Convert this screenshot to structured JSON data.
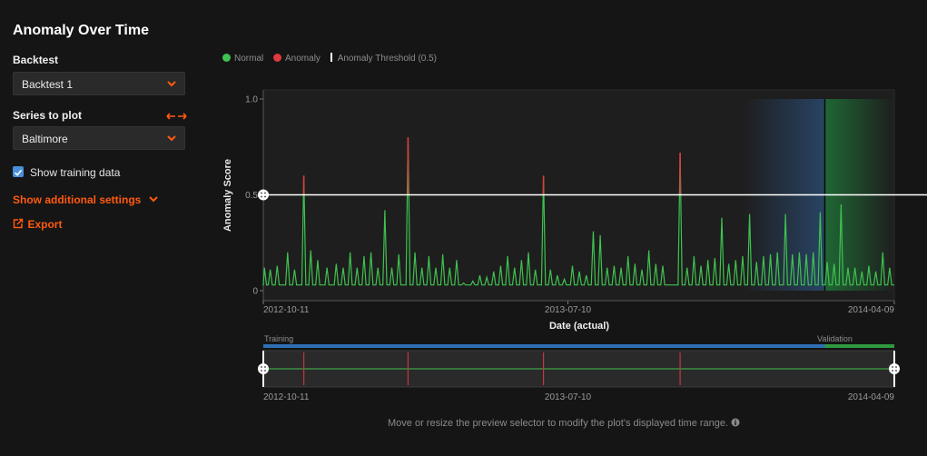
{
  "page": {
    "title": "Anomaly Over Time",
    "backtest_label": "Backtest",
    "backtest_value": "Backtest 1",
    "series_label": "Series to plot",
    "series_value": "Baltimore",
    "show_training_label": "Show training data",
    "show_training_checked": true,
    "additional_settings_label": "Show additional settings",
    "export_label": "Export",
    "footnote": "Move or resize the preview selector to modify the plot's displayed time range.",
    "colors": {
      "accent": "#ff5a0f",
      "normal": "#3fc24f",
      "anomaly": "#e0393e",
      "training": "#2f6fb5",
      "validation": "#2f9a3f"
    }
  },
  "legend": [
    {
      "label": "Normal",
      "color": "#3fc24f",
      "marker": "dot"
    },
    {
      "label": "Anomaly",
      "color": "#e0393e",
      "marker": "dot"
    },
    {
      "label": "Anomaly Threshold (0.5)",
      "color": "#ffffff",
      "marker": "line"
    }
  ],
  "chart_data": {
    "type": "line",
    "ylabel": "Anomaly Score",
    "xlabel": "Date (actual)",
    "yticks": [
      "0",
      "0.5",
      "1.0"
    ],
    "ylim": [
      0,
      1.05
    ],
    "xtick_labels": [
      "2012-10-11",
      "2013-07-10",
      "2014-04-09"
    ],
    "x_range": [
      "2012-10-11",
      "2014-04-09"
    ],
    "threshold": 0.5,
    "partitions": [
      {
        "name": "Training",
        "start": "2012-10-11",
        "end": "2014-02-08"
      },
      {
        "name": "Validation",
        "start": "2014-02-08",
        "end": "2014-04-09"
      }
    ],
    "series": [
      {
        "name": "Anomaly Score",
        "baseline": 0.03,
        "peaks": [
          [
            "2012-10-12",
            0.12
          ],
          [
            "2012-10-17",
            0.11
          ],
          [
            "2012-10-23",
            0.13
          ],
          [
            "2012-11-01",
            0.2
          ],
          [
            "2012-11-07",
            0.11
          ],
          [
            "2012-11-15",
            0.6
          ],
          [
            "2012-11-21",
            0.21
          ],
          [
            "2012-11-27",
            0.16
          ],
          [
            "2012-12-05",
            0.12
          ],
          [
            "2012-12-13",
            0.14
          ],
          [
            "2012-12-19",
            0.12
          ],
          [
            "2012-12-25",
            0.2
          ],
          [
            "2012-12-31",
            0.12
          ],
          [
            "2013-01-06",
            0.18
          ],
          [
            "2013-01-12",
            0.2
          ],
          [
            "2013-01-18",
            0.12
          ],
          [
            "2013-01-24",
            0.42
          ],
          [
            "2013-01-30",
            0.12
          ],
          [
            "2013-02-05",
            0.19
          ],
          [
            "2013-02-13",
            0.8
          ],
          [
            "2013-02-19",
            0.2
          ],
          [
            "2013-02-25",
            0.12
          ],
          [
            "2013-03-03",
            0.18
          ],
          [
            "2013-03-09",
            0.12
          ],
          [
            "2013-03-15",
            0.19
          ],
          [
            "2013-03-21",
            0.12
          ],
          [
            "2013-03-27",
            0.16
          ],
          [
            "2013-04-02",
            0.04
          ],
          [
            "2013-04-10",
            0.05
          ],
          [
            "2013-04-16",
            0.08
          ],
          [
            "2013-04-22",
            0.07
          ],
          [
            "2013-04-28",
            0.1
          ],
          [
            "2013-05-04",
            0.13
          ],
          [
            "2013-05-10",
            0.18
          ],
          [
            "2013-05-16",
            0.12
          ],
          [
            "2013-05-22",
            0.16
          ],
          [
            "2013-05-28",
            0.2
          ],
          [
            "2013-06-03",
            0.11
          ],
          [
            "2013-06-10",
            0.6
          ],
          [
            "2013-06-16",
            0.11
          ],
          [
            "2013-06-22",
            0.08
          ],
          [
            "2013-06-28",
            0.06
          ],
          [
            "2013-07-05",
            0.13
          ],
          [
            "2013-07-11",
            0.1
          ],
          [
            "2013-07-17",
            0.08
          ],
          [
            "2013-07-23",
            0.31
          ],
          [
            "2013-07-29",
            0.29
          ],
          [
            "2013-08-04",
            0.12
          ],
          [
            "2013-08-10",
            0.13
          ],
          [
            "2013-08-16",
            0.12
          ],
          [
            "2013-08-22",
            0.18
          ],
          [
            "2013-08-28",
            0.14
          ],
          [
            "2013-09-03",
            0.11
          ],
          [
            "2013-09-09",
            0.21
          ],
          [
            "2013-09-15",
            0.14
          ],
          [
            "2013-09-21",
            0.13
          ],
          [
            "2013-10-06",
            0.72
          ],
          [
            "2013-10-12",
            0.12
          ],
          [
            "2013-10-18",
            0.18
          ],
          [
            "2013-10-24",
            0.13
          ],
          [
            "2013-10-30",
            0.16
          ],
          [
            "2013-11-05",
            0.17
          ],
          [
            "2013-11-11",
            0.38
          ],
          [
            "2013-11-17",
            0.14
          ],
          [
            "2013-11-23",
            0.16
          ],
          [
            "2013-11-29",
            0.18
          ],
          [
            "2013-12-05",
            0.4
          ],
          [
            "2013-12-11",
            0.15
          ],
          [
            "2013-12-17",
            0.18
          ],
          [
            "2013-12-23",
            0.19
          ],
          [
            "2013-12-29",
            0.2
          ],
          [
            "2014-01-05",
            0.4
          ],
          [
            "2014-01-11",
            0.19
          ],
          [
            "2014-01-17",
            0.2
          ],
          [
            "2014-01-23",
            0.19
          ],
          [
            "2014-01-29",
            0.2
          ],
          [
            "2014-02-04",
            0.41
          ],
          [
            "2014-02-10",
            0.15
          ],
          [
            "2014-02-16",
            0.14
          ],
          [
            "2014-02-22",
            0.45
          ],
          [
            "2014-02-28",
            0.12
          ],
          [
            "2014-03-06",
            0.12
          ],
          [
            "2014-03-12",
            0.1
          ],
          [
            "2014-03-18",
            0.13
          ],
          [
            "2014-03-24",
            0.1
          ],
          [
            "2014-03-30",
            0.2
          ],
          [
            "2014-04-05",
            0.12
          ]
        ]
      }
    ],
    "anomalies": [
      {
        "date": "2012-11-15",
        "score": 0.6
      },
      {
        "date": "2013-02-13",
        "score": 0.8
      },
      {
        "date": "2013-06-10",
        "score": 0.6
      },
      {
        "date": "2013-10-06",
        "score": 0.72
      }
    ],
    "preview": {
      "training_label": "Training",
      "validation_label": "Validation",
      "xtick_labels": [
        "2012-10-11",
        "2013-07-10",
        "2014-04-09"
      ]
    }
  }
}
